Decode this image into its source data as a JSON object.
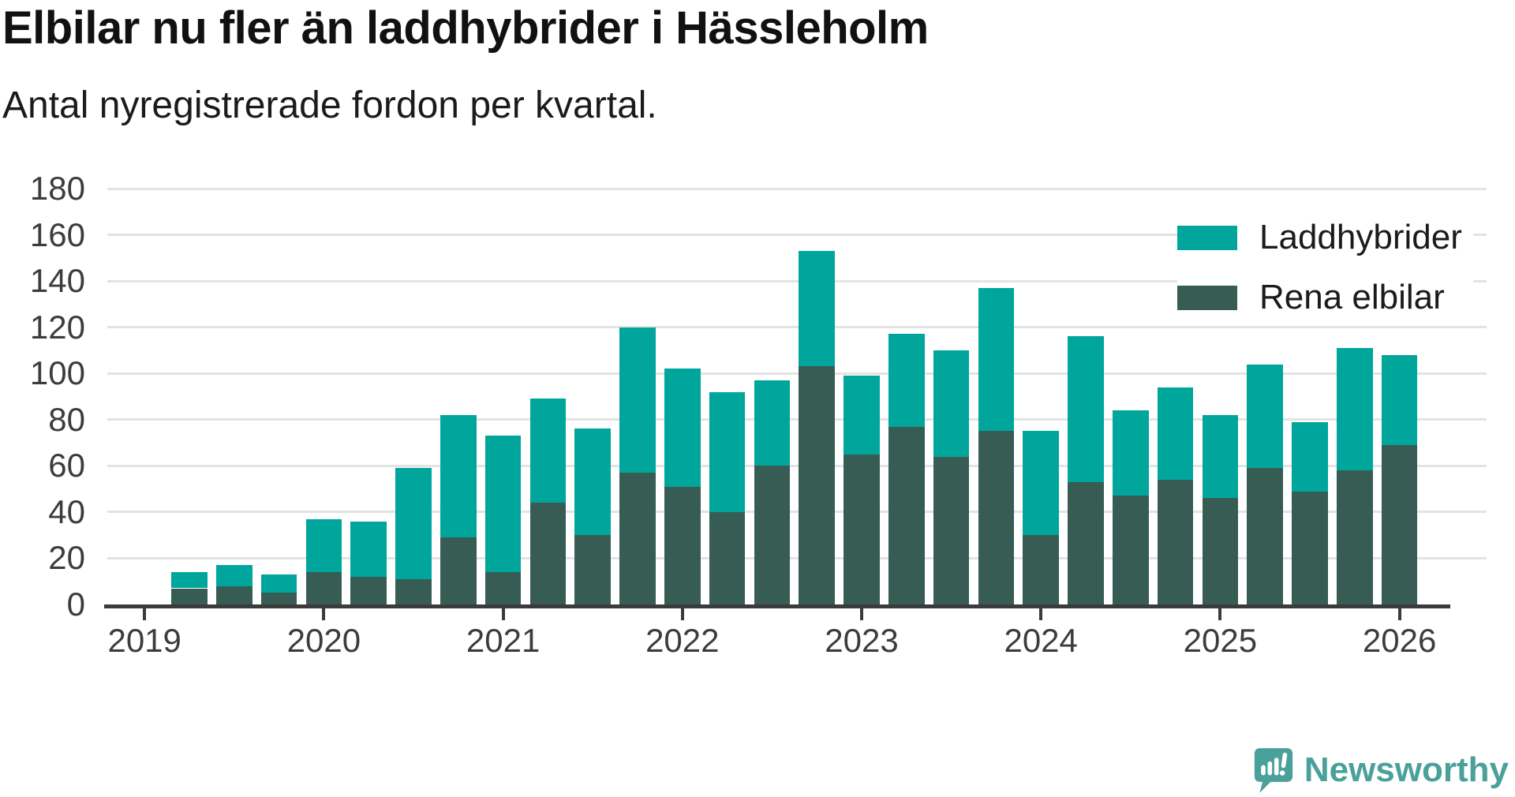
{
  "title": "Elbilar nu fler än laddhybrider i Hässleholm",
  "subtitle": "Antal nyregistrerade fordon per kvartal.",
  "legend": {
    "items": [
      {
        "label": "Laddhybrider",
        "color": "#00a69c"
      },
      {
        "label": "Rena elbilar",
        "color": "#375c54"
      }
    ]
  },
  "colors": {
    "laddhybrider": "#00a69c",
    "rena_elbilar": "#375c54",
    "gridline": "#e3e3e3",
    "axis": "#3b3b3b",
    "brand_teal": "#4aa09a"
  },
  "branding": {
    "logo_text": "Newsworthy"
  },
  "chart_data": {
    "type": "bar",
    "stacked": true,
    "title": "Elbilar nu fler än laddhybrider i Hässleholm",
    "subtitle": "Antal nyregistrerade fordon per kvartal.",
    "xlabel": "",
    "ylabel": "",
    "ylim": [
      0,
      180
    ],
    "yticks": [
      0,
      20,
      40,
      60,
      80,
      100,
      120,
      140,
      160,
      180
    ],
    "xticks": [
      "2019",
      "2020",
      "2021",
      "2022",
      "2023",
      "2024",
      "2025",
      "2026"
    ],
    "grid": true,
    "legend_position": "top-right",
    "categories": [
      "2019 Q2",
      "2019 Q3",
      "2019 Q4",
      "2020 Q1",
      "2020 Q2",
      "2020 Q3",
      "2020 Q4",
      "2021 Q1",
      "2021 Q2",
      "2021 Q3",
      "2021 Q4",
      "2022 Q1",
      "2022 Q2",
      "2022 Q3",
      "2022 Q4",
      "2023 Q1",
      "2023 Q2",
      "2023 Q3",
      "2023 Q4",
      "2024 Q1",
      "2024 Q2",
      "2024 Q3",
      "2024 Q4",
      "2025 Q1",
      "2025 Q2",
      "2025 Q3",
      "2025 Q4",
      "2026 Q1"
    ],
    "series": [
      {
        "name": "Laddhybrider",
        "color": "#00a69c",
        "stack_order": "top",
        "values": [
          7,
          9,
          8,
          23,
          24,
          48,
          53,
          59,
          45,
          46,
          63,
          51,
          52,
          37,
          50,
          34,
          40,
          46,
          62,
          45,
          63,
          37,
          40,
          36,
          45,
          30,
          53,
          39
        ]
      },
      {
        "name": "Rena elbilar",
        "color": "#375c54",
        "stack_order": "bottom",
        "values": [
          7,
          8,
          5,
          14,
          12,
          11,
          29,
          14,
          44,
          30,
          57,
          51,
          40,
          60,
          103,
          65,
          77,
          64,
          75,
          30,
          53,
          47,
          54,
          46,
          59,
          49,
          58,
          69
        ]
      }
    ],
    "totals": [
      14,
      17,
      13,
      37,
      36,
      59,
      82,
      73,
      89,
      76,
      120,
      102,
      92,
      97,
      153,
      99,
      117,
      110,
      137,
      75,
      116,
      84,
      94,
      82,
      104,
      79,
      111,
      108
    ]
  }
}
